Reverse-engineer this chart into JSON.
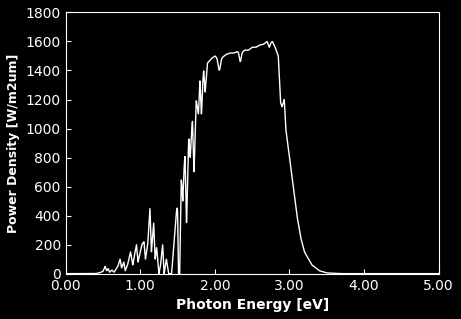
{
  "title": "",
  "xlabel": "Photon Energy [eV]",
  "ylabel": "Power Density [W/m2um]",
  "xlim": [
    0.0,
    5.0
  ],
  "ylim": [
    0,
    1800
  ],
  "xticks": [
    0.0,
    1.0,
    2.0,
    3.0,
    4.0,
    5.0
  ],
  "yticks": [
    0,
    200,
    400,
    600,
    800,
    1000,
    1200,
    1400,
    1600,
    1800
  ],
  "xtick_labels": [
    "0.00",
    "1.00",
    "2.00",
    "3.00",
    "4.00",
    "5.00"
  ],
  "ytick_labels": [
    "0",
    "200",
    "400",
    "600",
    "800",
    "1000",
    "1200",
    "1400",
    "1600",
    "1800"
  ],
  "background_color": "#000000",
  "line_color": "#ffffff",
  "axes_color": "#ffffff",
  "tick_color": "#ffffff",
  "label_color": "#ffffff",
  "linewidth": 1.0,
  "xlabel_fontsize": 10,
  "ylabel_fontsize": 9
}
